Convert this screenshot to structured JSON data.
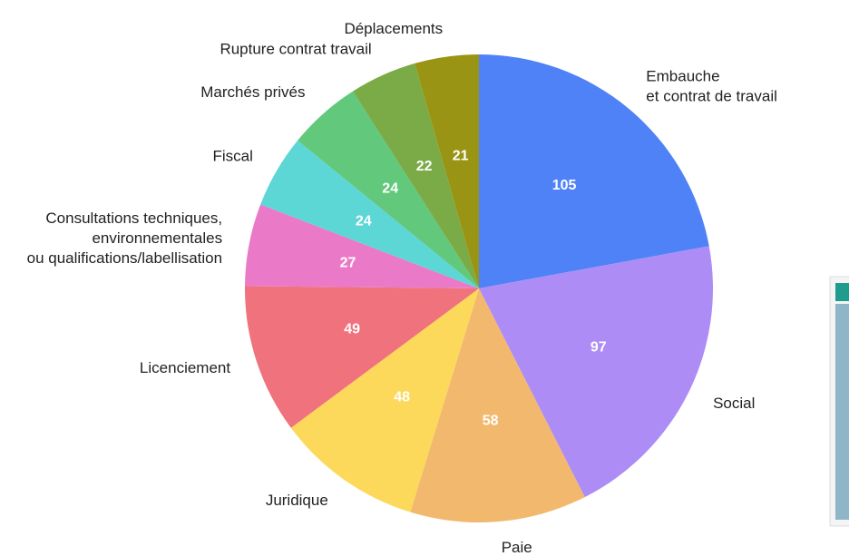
{
  "chart_data": {
    "type": "pie",
    "categories": [
      "Embauche\net contrat de travail",
      "Social",
      "Paie",
      "Juridique",
      "Licenciement",
      "Consultations techniques,\nenvironnementales\nou qualifications/labellisation",
      "Fiscal",
      "Marchés privés",
      "Rupture contrat travail",
      "Déplacements"
    ],
    "values": [
      105,
      97,
      58,
      48,
      49,
      27,
      24,
      24,
      22,
      21
    ],
    "colors": [
      "#4f82f7",
      "#ad8cf5",
      "#f2b96e",
      "#fcd95a",
      "#ef727c",
      "#ea7ac8",
      "#5dd6d6",
      "#62c87c",
      "#7aab46",
      "#999414"
    ]
  }
}
